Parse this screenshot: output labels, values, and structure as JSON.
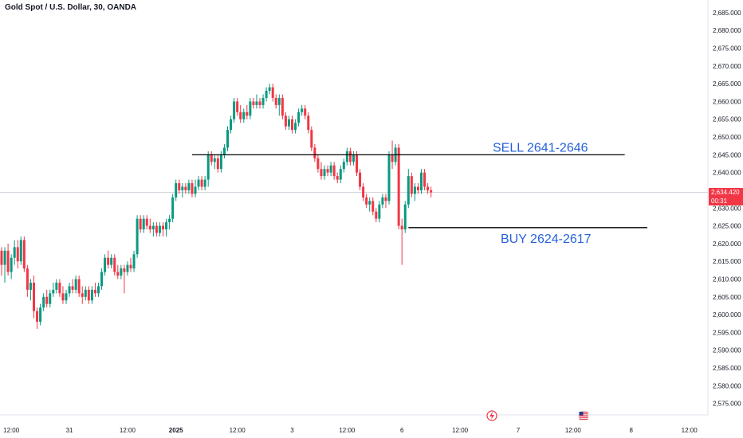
{
  "header": {
    "title": "Gold Spot / U.S. Dollar, 30, OANDA"
  },
  "price_tag": {
    "price": "2,634.420",
    "countdown": "00:31"
  },
  "colors": {
    "up": "#089981",
    "down": "#f23645",
    "annotation": "#2662d9",
    "line": "#000000",
    "price_tag_bg": "#f23645"
  },
  "event_icons": [
    {
      "name": "lightning-icon",
      "x_label_near": "7"
    },
    {
      "name": "us-flag-icon",
      "x_label_near": "12:00"
    }
  ],
  "chart_data": {
    "type": "candlestick",
    "title": "Gold Spot / U.S. Dollar, 30, OANDA",
    "y_axis": {
      "position": "right",
      "ylim": [
        2572,
        2687
      ],
      "ticks": [
        "2,685.000",
        "2,680.000",
        "2,675.000",
        "2,670.000",
        "2,665.000",
        "2,660.000",
        "2,655.000",
        "2,650.000",
        "2,645.000",
        "2,640.000",
        "2,635.000",
        "2,630.000",
        "2,625.000",
        "2,620.000",
        "2,615.000",
        "2,610.000",
        "2,605.000",
        "2,600.000",
        "2,595.000",
        "2,590.000",
        "2,585.000",
        "2,580.000",
        "2,575.000"
      ],
      "tick_values": [
        2685,
        2680,
        2675,
        2670,
        2665,
        2660,
        2655,
        2650,
        2645,
        2640,
        2635,
        2630,
        2625,
        2620,
        2615,
        2610,
        2605,
        2600,
        2595,
        2590,
        2585,
        2580,
        2575
      ]
    },
    "x_axis": {
      "ticks": [
        {
          "label": "12:00",
          "bar": 3,
          "bold": false
        },
        {
          "label": "31",
          "bar": 21,
          "bold": false
        },
        {
          "label": "12:00",
          "bar": 39,
          "bold": false
        },
        {
          "label": "2025",
          "bar": 54,
          "bold": true
        },
        {
          "label": "12:00",
          "bar": 73,
          "bold": false
        },
        {
          "label": "3",
          "bar": 90,
          "bold": false
        },
        {
          "label": "12:00",
          "bar": 107,
          "bold": false
        },
        {
          "label": "6",
          "bar": 124,
          "bold": false
        },
        {
          "label": "12:00",
          "bar": 142,
          "bold": false
        },
        {
          "label": "7",
          "bar": 160,
          "bold": false
        },
        {
          "label": "12:00",
          "bar": 177,
          "bold": false
        },
        {
          "label": "8",
          "bar": 195,
          "bold": false
        },
        {
          "label": "12:00",
          "bar": 213,
          "bold": false
        }
      ]
    },
    "grid": false,
    "total_bar_slots": 220,
    "current_price": 2634.42,
    "levels": [
      {
        "label": "SELL 2641-2646",
        "value": 2645,
        "start_bar": 59,
        "end_bar": 193
      },
      {
        "label": "BUY 2624-2617",
        "value": 2624.5,
        "start_bar": 126,
        "end_bar": 200
      }
    ],
    "candles": [
      {
        "o": 2618,
        "h": 2619,
        "l": 2611,
        "c": 2614
      },
      {
        "o": 2614,
        "h": 2619,
        "l": 2609,
        "c": 2618
      },
      {
        "o": 2618,
        "h": 2620,
        "l": 2611,
        "c": 2612
      },
      {
        "o": 2612,
        "h": 2617,
        "l": 2610,
        "c": 2616
      },
      {
        "o": 2616,
        "h": 2621,
        "l": 2614,
        "c": 2619
      },
      {
        "o": 2619,
        "h": 2621,
        "l": 2613,
        "c": 2615
      },
      {
        "o": 2615,
        "h": 2622,
        "l": 2614,
        "c": 2621
      },
      {
        "o": 2621,
        "h": 2622,
        "l": 2612,
        "c": 2613
      },
      {
        "o": 2613,
        "h": 2614,
        "l": 2605,
        "c": 2607
      },
      {
        "o": 2607,
        "h": 2610,
        "l": 2604,
        "c": 2609
      },
      {
        "o": 2609,
        "h": 2611,
        "l": 2599,
        "c": 2601
      },
      {
        "o": 2601,
        "h": 2602,
        "l": 2596,
        "c": 2598
      },
      {
        "o": 2598,
        "h": 2603,
        "l": 2597,
        "c": 2602
      },
      {
        "o": 2602,
        "h": 2606,
        "l": 2601,
        "c": 2605
      },
      {
        "o": 2605,
        "h": 2607,
        "l": 2602,
        "c": 2603
      },
      {
        "o": 2603,
        "h": 2607,
        "l": 2602,
        "c": 2606
      },
      {
        "o": 2606,
        "h": 2609,
        "l": 2605,
        "c": 2607
      },
      {
        "o": 2607,
        "h": 2610,
        "l": 2606,
        "c": 2609
      },
      {
        "o": 2609,
        "h": 2610,
        "l": 2605,
        "c": 2606
      },
      {
        "o": 2606,
        "h": 2608,
        "l": 2603,
        "c": 2604
      },
      {
        "o": 2604,
        "h": 2607,
        "l": 2603,
        "c": 2606
      },
      {
        "o": 2606,
        "h": 2609,
        "l": 2605,
        "c": 2608
      },
      {
        "o": 2608,
        "h": 2610,
        "l": 2606,
        "c": 2607
      },
      {
        "o": 2607,
        "h": 2611,
        "l": 2606,
        "c": 2610
      },
      {
        "o": 2610,
        "h": 2611,
        "l": 2605,
        "c": 2606
      },
      {
        "o": 2606,
        "h": 2608,
        "l": 2603,
        "c": 2605
      },
      {
        "o": 2605,
        "h": 2608,
        "l": 2604,
        "c": 2607
      },
      {
        "o": 2607,
        "h": 2608,
        "l": 2603,
        "c": 2604
      },
      {
        "o": 2604,
        "h": 2608,
        "l": 2603,
        "c": 2607
      },
      {
        "o": 2607,
        "h": 2609,
        "l": 2605,
        "c": 2606
      },
      {
        "o": 2606,
        "h": 2609,
        "l": 2605,
        "c": 2608
      },
      {
        "o": 2608,
        "h": 2613,
        "l": 2607,
        "c": 2612
      },
      {
        "o": 2612,
        "h": 2617,
        "l": 2611,
        "c": 2616
      },
      {
        "o": 2616,
        "h": 2618,
        "l": 2613,
        "c": 2614
      },
      {
        "o": 2614,
        "h": 2617,
        "l": 2613,
        "c": 2616
      },
      {
        "o": 2616,
        "h": 2617,
        "l": 2611,
        "c": 2612
      },
      {
        "o": 2612,
        "h": 2614,
        "l": 2610,
        "c": 2611
      },
      {
        "o": 2611,
        "h": 2614,
        "l": 2610,
        "c": 2613
      },
      {
        "o": 2613,
        "h": 2614,
        "l": 2606,
        "c": 2612
      },
      {
        "o": 2612,
        "h": 2615,
        "l": 2611,
        "c": 2614
      },
      {
        "o": 2614,
        "h": 2616,
        "l": 2612,
        "c": 2613
      },
      {
        "o": 2613,
        "h": 2618,
        "l": 2612,
        "c": 2617
      },
      {
        "o": 2617,
        "h": 2628,
        "l": 2616,
        "c": 2627
      },
      {
        "o": 2627,
        "h": 2628,
        "l": 2623,
        "c": 2624
      },
      {
        "o": 2624,
        "h": 2628,
        "l": 2623,
        "c": 2627
      },
      {
        "o": 2627,
        "h": 2628,
        "l": 2624,
        "c": 2625
      },
      {
        "o": 2625,
        "h": 2627,
        "l": 2623,
        "c": 2624
      },
      {
        "o": 2624,
        "h": 2626,
        "l": 2622,
        "c": 2625
      },
      {
        "o": 2625,
        "h": 2626,
        "l": 2622,
        "c": 2623
      },
      {
        "o": 2623,
        "h": 2626,
        "l": 2622,
        "c": 2625
      },
      {
        "o": 2625,
        "h": 2626,
        "l": 2622,
        "c": 2624
      },
      {
        "o": 2624,
        "h": 2627,
        "l": 2622,
        "c": 2626
      },
      {
        "o": 2626,
        "h": 2628,
        "l": 2624,
        "c": 2627
      },
      {
        "o": 2627,
        "h": 2634,
        "l": 2626,
        "c": 2633
      },
      {
        "o": 2633,
        "h": 2638,
        "l": 2632,
        "c": 2637
      },
      {
        "o": 2637,
        "h": 2638,
        "l": 2634,
        "c": 2635
      },
      {
        "o": 2635,
        "h": 2637,
        "l": 2633,
        "c": 2636
      },
      {
        "o": 2636,
        "h": 2637,
        "l": 2634,
        "c": 2635
      },
      {
        "o": 2635,
        "h": 2638,
        "l": 2634,
        "c": 2637
      },
      {
        "o": 2637,
        "h": 2638,
        "l": 2633,
        "c": 2634
      },
      {
        "o": 2634,
        "h": 2638,
        "l": 2633,
        "c": 2636
      },
      {
        "o": 2636,
        "h": 2639,
        "l": 2635,
        "c": 2638
      },
      {
        "o": 2638,
        "h": 2639,
        "l": 2635,
        "c": 2636
      },
      {
        "o": 2636,
        "h": 2639,
        "l": 2635,
        "c": 2638
      },
      {
        "o": 2638,
        "h": 2646,
        "l": 2636,
        "c": 2645
      },
      {
        "o": 2645,
        "h": 2646,
        "l": 2642,
        "c": 2643
      },
      {
        "o": 2643,
        "h": 2645,
        "l": 2641,
        "c": 2644
      },
      {
        "o": 2644,
        "h": 2645,
        "l": 2640,
        "c": 2641
      },
      {
        "o": 2641,
        "h": 2646,
        "l": 2640,
        "c": 2645
      },
      {
        "o": 2645,
        "h": 2648,
        "l": 2644,
        "c": 2647
      },
      {
        "o": 2647,
        "h": 2653,
        "l": 2646,
        "c": 2652
      },
      {
        "o": 2652,
        "h": 2656,
        "l": 2651,
        "c": 2655
      },
      {
        "o": 2655,
        "h": 2661,
        "l": 2654,
        "c": 2660
      },
      {
        "o": 2660,
        "h": 2661,
        "l": 2656,
        "c": 2657
      },
      {
        "o": 2657,
        "h": 2659,
        "l": 2654,
        "c": 2655
      },
      {
        "o": 2655,
        "h": 2658,
        "l": 2654,
        "c": 2657
      },
      {
        "o": 2657,
        "h": 2659,
        "l": 2655,
        "c": 2656
      },
      {
        "o": 2656,
        "h": 2661,
        "l": 2655,
        "c": 2660
      },
      {
        "o": 2660,
        "h": 2661,
        "l": 2658,
        "c": 2659
      },
      {
        "o": 2659,
        "h": 2662,
        "l": 2658,
        "c": 2660
      },
      {
        "o": 2660,
        "h": 2661,
        "l": 2658,
        "c": 2659
      },
      {
        "o": 2659,
        "h": 2662,
        "l": 2658,
        "c": 2661
      },
      {
        "o": 2661,
        "h": 2664,
        "l": 2660,
        "c": 2663
      },
      {
        "o": 2663,
        "h": 2665,
        "l": 2662,
        "c": 2664
      },
      {
        "o": 2664,
        "h": 2665,
        "l": 2660,
        "c": 2661
      },
      {
        "o": 2661,
        "h": 2662,
        "l": 2658,
        "c": 2659
      },
      {
        "o": 2659,
        "h": 2662,
        "l": 2656,
        "c": 2661
      },
      {
        "o": 2661,
        "h": 2662,
        "l": 2655,
        "c": 2656
      },
      {
        "o": 2656,
        "h": 2657,
        "l": 2652,
        "c": 2653
      },
      {
        "o": 2653,
        "h": 2656,
        "l": 2652,
        "c": 2655
      },
      {
        "o": 2655,
        "h": 2656,
        "l": 2651,
        "c": 2652
      },
      {
        "o": 2652,
        "h": 2655,
        "l": 2651,
        "c": 2654
      },
      {
        "o": 2654,
        "h": 2658,
        "l": 2653,
        "c": 2657
      },
      {
        "o": 2657,
        "h": 2659,
        "l": 2656,
        "c": 2658
      },
      {
        "o": 2658,
        "h": 2659,
        "l": 2655,
        "c": 2656
      },
      {
        "o": 2656,
        "h": 2657,
        "l": 2651,
        "c": 2652
      },
      {
        "o": 2652,
        "h": 2653,
        "l": 2646,
        "c": 2647
      },
      {
        "o": 2647,
        "h": 2648,
        "l": 2643,
        "c": 2644
      },
      {
        "o": 2644,
        "h": 2645,
        "l": 2640,
        "c": 2641
      },
      {
        "o": 2641,
        "h": 2643,
        "l": 2638,
        "c": 2639
      },
      {
        "o": 2639,
        "h": 2642,
        "l": 2638,
        "c": 2641
      },
      {
        "o": 2641,
        "h": 2642,
        "l": 2639,
        "c": 2640
      },
      {
        "o": 2640,
        "h": 2643,
        "l": 2639,
        "c": 2642
      },
      {
        "o": 2642,
        "h": 2643,
        "l": 2638,
        "c": 2639
      },
      {
        "o": 2639,
        "h": 2640,
        "l": 2637,
        "c": 2638
      },
      {
        "o": 2638,
        "h": 2642,
        "l": 2637,
        "c": 2641
      },
      {
        "o": 2641,
        "h": 2644,
        "l": 2640,
        "c": 2643
      },
      {
        "o": 2643,
        "h": 2647,
        "l": 2642,
        "c": 2646
      },
      {
        "o": 2646,
        "h": 2647,
        "l": 2642,
        "c": 2643
      },
      {
        "o": 2643,
        "h": 2646,
        "l": 2642,
        "c": 2645
      },
      {
        "o": 2645,
        "h": 2646,
        "l": 2639,
        "c": 2640
      },
      {
        "o": 2640,
        "h": 2641,
        "l": 2635,
        "c": 2636
      },
      {
        "o": 2636,
        "h": 2637,
        "l": 2632,
        "c": 2633
      },
      {
        "o": 2633,
        "h": 2634,
        "l": 2630,
        "c": 2631
      },
      {
        "o": 2631,
        "h": 2633,
        "l": 2629,
        "c": 2632
      },
      {
        "o": 2632,
        "h": 2633,
        "l": 2628,
        "c": 2629
      },
      {
        "o": 2629,
        "h": 2630,
        "l": 2626,
        "c": 2627
      },
      {
        "o": 2627,
        "h": 2632,
        "l": 2626,
        "c": 2631
      },
      {
        "o": 2631,
        "h": 2634,
        "l": 2630,
        "c": 2633
      },
      {
        "o": 2633,
        "h": 2634,
        "l": 2630,
        "c": 2632
      },
      {
        "o": 2632,
        "h": 2646,
        "l": 2631,
        "c": 2645
      },
      {
        "o": 2645,
        "h": 2649,
        "l": 2641,
        "c": 2643
      },
      {
        "o": 2643,
        "h": 2648,
        "l": 2642,
        "c": 2647
      },
      {
        "o": 2647,
        "h": 2648,
        "l": 2624,
        "c": 2625
      },
      {
        "o": 2625,
        "h": 2627,
        "l": 2614,
        "c": 2624
      },
      {
        "o": 2624,
        "h": 2632,
        "l": 2623,
        "c": 2631
      },
      {
        "o": 2631,
        "h": 2641,
        "l": 2630,
        "c": 2639
      },
      {
        "o": 2639,
        "h": 2640,
        "l": 2633,
        "c": 2634
      },
      {
        "o": 2634,
        "h": 2637,
        "l": 2632,
        "c": 2636
      },
      {
        "o": 2636,
        "h": 2637,
        "l": 2634,
        "c": 2635
      },
      {
        "o": 2635,
        "h": 2641,
        "l": 2634,
        "c": 2640
      },
      {
        "o": 2640,
        "h": 2641,
        "l": 2635,
        "c": 2636
      },
      {
        "o": 2636,
        "h": 2637,
        "l": 2634,
        "c": 2635
      },
      {
        "o": 2635,
        "h": 2636,
        "l": 2633,
        "c": 2634.42
      }
    ]
  }
}
